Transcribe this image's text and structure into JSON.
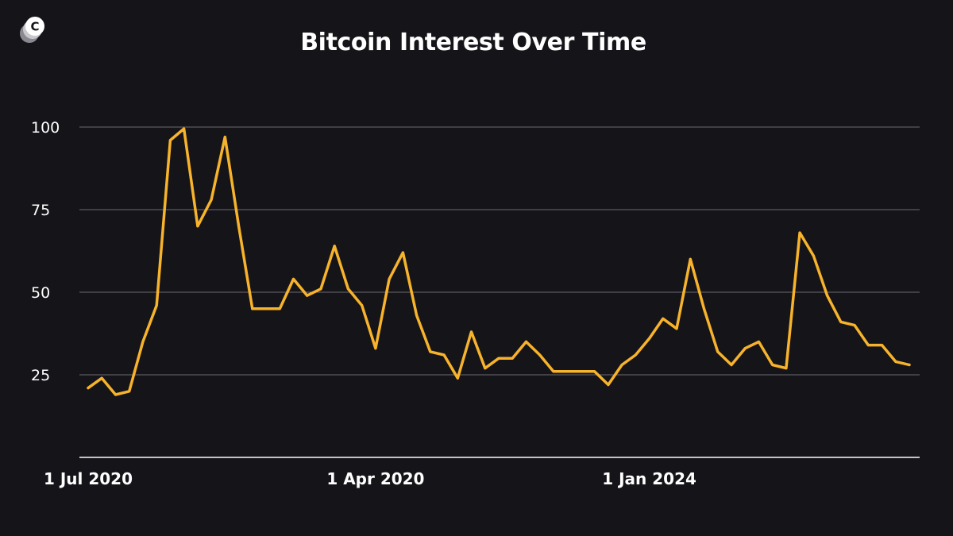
{
  "brand": {
    "logo_icon": "c-circle-logo-icon"
  },
  "colors": {
    "background": "#151419",
    "line": "#F7B32B",
    "grid": "#6b6a72",
    "axis": "#ffffff",
    "text": "#ffffff"
  },
  "chart_data": {
    "type": "line",
    "title": "Bitcoin Interest Over Time",
    "xlabel": "",
    "ylabel": "",
    "ylim": [
      0,
      100
    ],
    "yticks": [
      25,
      50,
      75,
      100
    ],
    "x_tick_labels": [
      {
        "label": "1 Jul 2020",
        "index": 0
      },
      {
        "label": "1 Apr 2020",
        "index": 21
      },
      {
        "label": "1 Jan 2024",
        "index": 41
      }
    ],
    "grid": true,
    "legend": "none",
    "series": [
      {
        "values": [
          21,
          24,
          19,
          20,
          35,
          46,
          96,
          99.5,
          70,
          78,
          97,
          70,
          45,
          45,
          45,
          54,
          49,
          51,
          64,
          51,
          46,
          33,
          54,
          62,
          43,
          32,
          31,
          24,
          38,
          27,
          30,
          30,
          35,
          31,
          26,
          26,
          26,
          26,
          22,
          28,
          31,
          36,
          42,
          39,
          60,
          45,
          32,
          28,
          33,
          35,
          28,
          27,
          68,
          61,
          49,
          41,
          40,
          34,
          34,
          29,
          28
        ]
      }
    ]
  }
}
